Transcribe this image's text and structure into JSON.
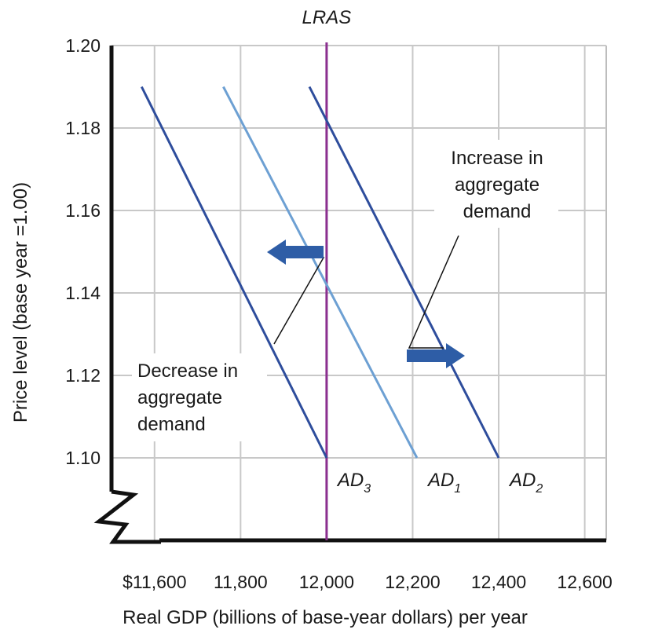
{
  "chart_data": {
    "type": "line",
    "xlabel": "Real GDP (billions of base-year dollars) per year",
    "ylabel": "Price level (base year =1.00)",
    "x_ticks": [
      "$11,600",
      "11,800",
      "12,000",
      "12,200",
      "12,400",
      "12,600"
    ],
    "x_tick_values": [
      11600,
      11800,
      12000,
      12200,
      12400,
      12600
    ],
    "y_ticks": [
      "1.20",
      "1.18",
      "1.16",
      "1.14",
      "1.12",
      "1.10"
    ],
    "y_tick_values": [
      1.2,
      1.18,
      1.16,
      1.14,
      1.12,
      1.1
    ],
    "xlim": [
      11500,
      12650
    ],
    "ylim": [
      1.08,
      1.2
    ],
    "grid": true,
    "axis_break": true,
    "series": [
      {
        "name": "AD",
        "sub": "3",
        "color": "#2e4d9c",
        "points": [
          [
            11570,
            1.19
          ],
          [
            12000,
            1.1
          ]
        ]
      },
      {
        "name": "AD",
        "sub": "1",
        "color": "#6da0d3",
        "points": [
          [
            11760,
            1.19
          ],
          [
            12210,
            1.1
          ]
        ]
      },
      {
        "name": "AD",
        "sub": "2",
        "color": "#2e4d9c",
        "points": [
          [
            11960,
            1.19
          ],
          [
            12400,
            1.1
          ]
        ]
      }
    ],
    "lras": {
      "label": "LRAS",
      "x": 12000,
      "color": "#8b2f8f"
    },
    "annotations": {
      "increase": [
        "Increase in",
        "aggregate",
        "demand"
      ],
      "decrease": [
        "Decrease in",
        "aggregate",
        "demand"
      ]
    },
    "arrow_color": "#2e5da6"
  }
}
